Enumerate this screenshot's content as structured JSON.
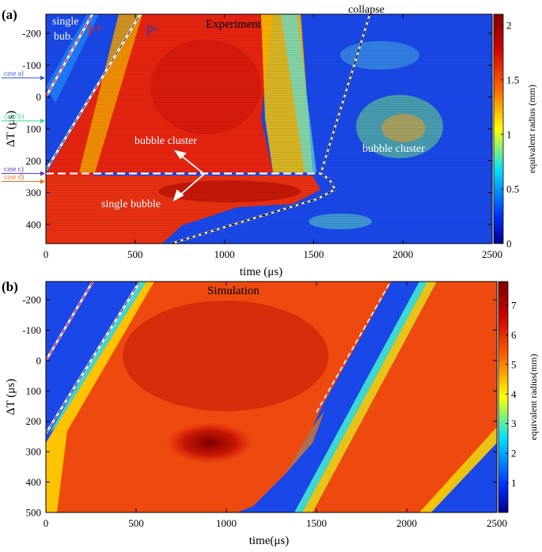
{
  "chart_data": [
    {
      "type": "heatmap",
      "panel_label": "(a)",
      "title": "Experiment",
      "xlabel": "time (μs)",
      "ylabel": "ΔT (μs)",
      "xlim": [
        0,
        2500
      ],
      "ylim": [
        -260,
        460
      ],
      "y_reversed": true,
      "x_ticks": [
        0,
        500,
        1000,
        1500,
        2000,
        2500
      ],
      "y_ticks": [
        -200,
        -100,
        0,
        100,
        200,
        300,
        400
      ],
      "colorbar": {
        "label": "equivalent radius (mm)",
        "range": [
          0,
          2.1
        ],
        "ticks": [
          0,
          0.5,
          1,
          1.5,
          2
        ],
        "tick_labels": [
          "0",
          "0.5",
          "1",
          "1.5",
          "2"
        ]
      },
      "colormap": [
        "#00008f",
        "#0040ff",
        "#00ffff",
        "#ffff00",
        "#ff6000",
        "#d00000",
        "#800000"
      ],
      "annotations": [
        {
          "text": "single",
          "color": "#ffffff"
        },
        {
          "text": "bub.",
          "color": "#ffffff"
        },
        {
          "text": "p+",
          "color": "#e0201c"
        },
        {
          "text": "p-",
          "color": "#1c3cc8"
        },
        {
          "text": "collapse",
          "color": "#000000"
        },
        {
          "text": "bubble  cluster",
          "color": "#ffffff"
        },
        {
          "text": "single bubble",
          "color": "#ffffff"
        },
        {
          "text": "bubble  cluster",
          "color": "#ffffff"
        }
      ],
      "side_labels": [
        {
          "text": "case a)",
          "dt": -60,
          "color": "#3a5ad8"
        },
        {
          "text": "case b)",
          "dt": 75,
          "color": "#33dd88"
        },
        {
          "text": "case c)",
          "dt": 240,
          "color": "#5a2ad0"
        },
        {
          "text": "case d)",
          "dt": 265,
          "color": "#e87020"
        }
      ],
      "boundaries": {
        "p_plus": [
          [
            0,
            0
          ],
          [
            270,
            -270
          ]
        ],
        "p_minus": [
          [
            0,
            230
          ],
          [
            540,
            -270
          ]
        ],
        "delta_t_split": 240,
        "collapse_upper": [
          [
            1540,
            240
          ],
          [
            1820,
            -270
          ]
        ],
        "collapse_lower": [
          [
            700,
            460
          ],
          [
            1520,
            320
          ],
          [
            1620,
            290
          ],
          [
            1590,
            260
          ],
          [
            1540,
            240
          ]
        ]
      }
    },
    {
      "type": "heatmap",
      "panel_label": "(b)",
      "title": "Simulation",
      "xlabel": "time(μs)",
      "ylabel": "ΔT (μs)",
      "xlim": [
        0,
        2500
      ],
      "ylim": [
        -260,
        500
      ],
      "y_reversed": true,
      "x_ticks": [
        0,
        500,
        1000,
        1500,
        2000,
        2500
      ],
      "y_ticks": [
        -200,
        -100,
        0,
        100,
        200,
        300,
        400,
        500
      ],
      "colorbar": {
        "label": "equivalent radius(mm)",
        "range": [
          0,
          7.8
        ],
        "ticks": [
          1,
          2,
          3,
          4,
          5,
          6,
          7
        ],
        "tick_labels": [
          "1",
          "2",
          "3",
          "4",
          "5",
          "6",
          "7"
        ]
      },
      "colormap": [
        "#00008f",
        "#0040ff",
        "#00ffff",
        "#ffff00",
        "#ff6000",
        "#d00000",
        "#800000"
      ],
      "boundaries": {
        "p_plus": [
          [
            0,
            0
          ],
          [
            270,
            -270
          ]
        ],
        "p_minus": [
          [
            0,
            240
          ],
          [
            530,
            -270
          ]
        ],
        "collapse": [
          [
            1500,
            170
          ],
          [
            1920,
            -270
          ]
        ]
      }
    }
  ]
}
